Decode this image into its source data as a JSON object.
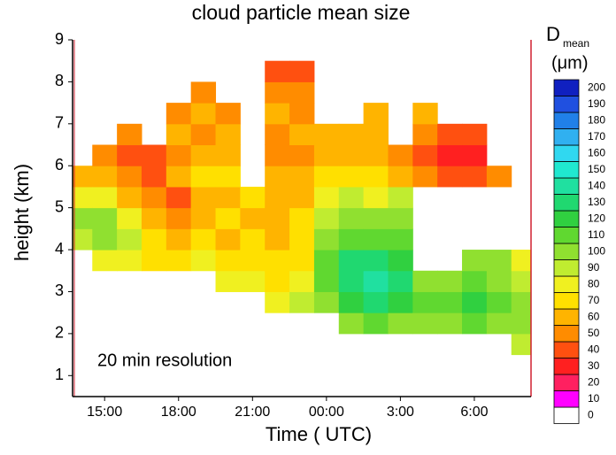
{
  "chart_data": {
    "type": "heatmap",
    "title": "cloud particle mean size",
    "x_label": "Time ( UTC)",
    "y_label": "height (km)",
    "annotation": "20 min resolution",
    "colorbar_label": {
      "symbol": "D",
      "subscript": "mean",
      "unit": "(μm)"
    },
    "x": [
      14,
      15,
      16,
      17,
      18,
      19,
      20,
      21,
      22,
      23,
      24,
      25,
      26,
      27,
      28,
      29,
      30,
      31,
      32
    ],
    "y": [
      1.25,
      1.75,
      2.25,
      2.75,
      3.25,
      3.75,
      4.25,
      4.75,
      5.25,
      5.75,
      6.25,
      6.75,
      7.25,
      7.75,
      8.25,
      8.75
    ],
    "values": [
      [
        null,
        null,
        null,
        null,
        null,
        null,
        90,
        100,
        80,
        60,
        null,
        null,
        null,
        null,
        null,
        null
      ],
      [
        null,
        null,
        null,
        null,
        null,
        80,
        100,
        100,
        80,
        60,
        50,
        null,
        null,
        null,
        null,
        null
      ],
      [
        null,
        null,
        null,
        null,
        null,
        80,
        90,
        80,
        60,
        50,
        40,
        50,
        null,
        null,
        null,
        null
      ],
      [
        null,
        null,
        null,
        null,
        null,
        70,
        70,
        60,
        50,
        40,
        40,
        null,
        null,
        null,
        null,
        null
      ],
      [
        null,
        null,
        null,
        null,
        null,
        70,
        60,
        50,
        40,
        60,
        50,
        60,
        50,
        null,
        null,
        null
      ],
      [
        null,
        null,
        null,
        null,
        null,
        80,
        70,
        60,
        60,
        70,
        60,
        50,
        60,
        50,
        null,
        null
      ],
      [
        null,
        null,
        null,
        null,
        80,
        70,
        60,
        70,
        60,
        70,
        60,
        60,
        50,
        null,
        null,
        null
      ],
      [
        null,
        null,
        null,
        null,
        80,
        70,
        70,
        60,
        70,
        null,
        null,
        null,
        null,
        null,
        null,
        null
      ],
      [
        null,
        null,
        null,
        80,
        70,
        70,
        60,
        60,
        60,
        60,
        50,
        50,
        60,
        50,
        40,
        null
      ],
      [
        null,
        null,
        null,
        90,
        80,
        70,
        70,
        70,
        60,
        60,
        50,
        60,
        50,
        50,
        40,
        null
      ],
      [
        null,
        null,
        null,
        100,
        110,
        110,
        100,
        90,
        80,
        70,
        60,
        60,
        null,
        null,
        null,
        null
      ],
      [
        null,
        null,
        100,
        120,
        130,
        130,
        110,
        100,
        90,
        70,
        60,
        60,
        null,
        null,
        null,
        null
      ],
      [
        null,
        null,
        110,
        130,
        140,
        130,
        110,
        100,
        80,
        70,
        60,
        60,
        60,
        null,
        null,
        null
      ],
      [
        null,
        null,
        100,
        120,
        130,
        120,
        110,
        100,
        90,
        60,
        50,
        null,
        null,
        null,
        null,
        null
      ],
      [
        null,
        null,
        100,
        110,
        100,
        null,
        null,
        null,
        null,
        50,
        40,
        50,
        60,
        null,
        null,
        null
      ],
      [
        null,
        null,
        100,
        110,
        100,
        null,
        null,
        null,
        null,
        40,
        30,
        40,
        null,
        null,
        null,
        null
      ],
      [
        null,
        null,
        110,
        120,
        110,
        100,
        null,
        null,
        null,
        40,
        30,
        40,
        null,
        null,
        null,
        null
      ],
      [
        null,
        null,
        100,
        110,
        100,
        100,
        null,
        null,
        null,
        50,
        null,
        null,
        null,
        null,
        null,
        null
      ],
      [
        null,
        90,
        100,
        100,
        90,
        80,
        null,
        null,
        null,
        null,
        null,
        null,
        null,
        null,
        null,
        null
      ]
    ],
    "xlim": [
      13.7,
      32.3
    ],
    "ylim": [
      0.5,
      9
    ],
    "xticks": [
      {
        "value": 15,
        "label": "15:00"
      },
      {
        "value": 18,
        "label": "18:00"
      },
      {
        "value": 21,
        "label": "21:00"
      },
      {
        "value": 24,
        "label": "00:00"
      },
      {
        "value": 27,
        "label": "3:00"
      },
      {
        "value": 30,
        "label": "6:00"
      }
    ],
    "yticks": [
      1,
      2,
      3,
      4,
      5,
      6,
      7,
      8,
      9
    ],
    "colorbar_ticks": [
      0,
      10,
      20,
      30,
      40,
      50,
      60,
      70,
      80,
      90,
      100,
      110,
      120,
      130,
      140,
      150,
      160,
      170,
      180,
      190,
      200
    ],
    "colors": [
      "#ffffff",
      "#ff00ff",
      "#ff2060",
      "#ff2020",
      "#ff5010",
      "#ff8c00",
      "#ffb400",
      "#ffe000",
      "#f0f020",
      "#c0ec30",
      "#90e030",
      "#60d830",
      "#30d040",
      "#20d870",
      "#20e0a0",
      "#20e8d0",
      "#30d8f0",
      "#30b0f0",
      "#2080e8",
      "#2050e0",
      "#1020c0"
    ]
  }
}
